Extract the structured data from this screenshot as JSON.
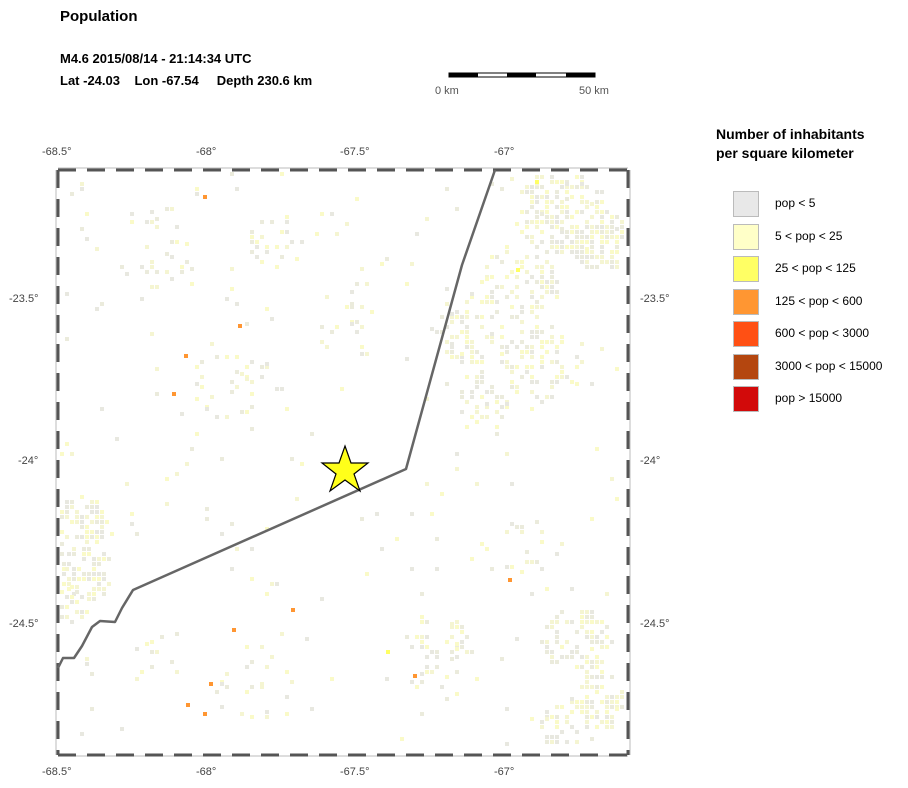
{
  "header": {
    "title": "Population",
    "event_line": "M4.6  2015/08/14 - 21:14:34 UTC",
    "lat": "Lat -24.03",
    "lon": "Lon -67.54",
    "depth": "Depth 230.6 km"
  },
  "scalebar": {
    "start_label": "0 km",
    "end_label": "50 km"
  },
  "map": {
    "x_ticks": [
      "-68.5°",
      "-68°",
      "-67.5°",
      "-67°"
    ],
    "y_ticks": [
      "-23.5°",
      "-24°",
      "-24.5°"
    ],
    "epicenter_icon": "star-icon",
    "epicenter_color": "#ffff1a",
    "boundary_color": "#666666"
  },
  "legend": {
    "title_line1": "Number of inhabitants",
    "title_line2": "per square kilometer",
    "items": [
      {
        "label": "pop < 5",
        "color": "#e8e8e8"
      },
      {
        "label": "5 < pop < 25",
        "color": "#ffffc8"
      },
      {
        "label": "25 < pop < 125",
        "color": "#ffff64"
      },
      {
        "label": "125 < pop < 600",
        "color": "#ff9632"
      },
      {
        "label": "600 < pop < 3000",
        "color": "#ff5014"
      },
      {
        "label": "3000 < pop < 15000",
        "color": "#b4460f"
      },
      {
        "label": "pop > 15000",
        "color": "#d20a0a"
      }
    ]
  }
}
